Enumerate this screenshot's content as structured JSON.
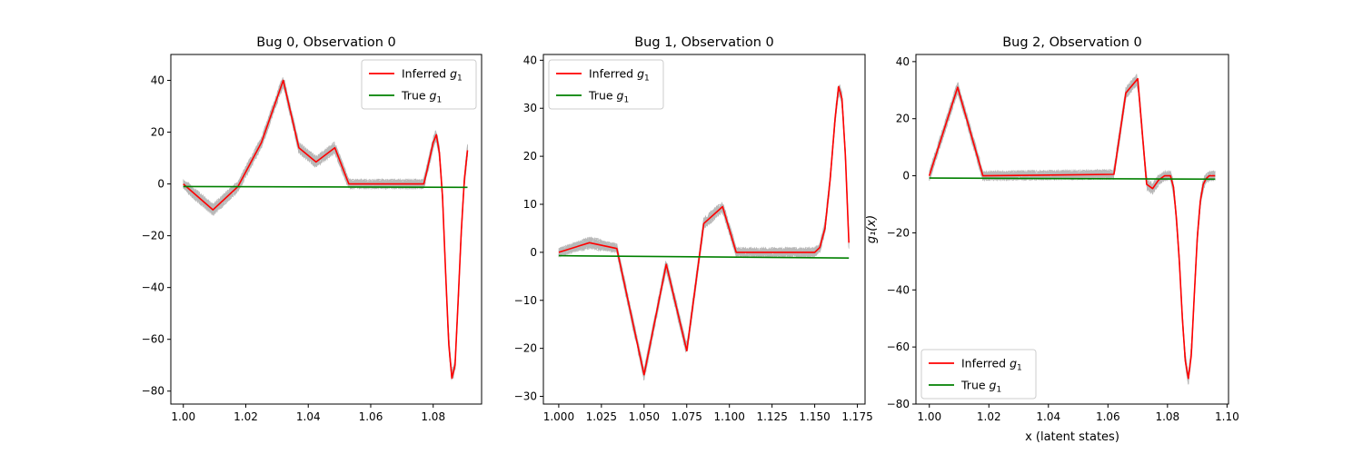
{
  "figure_label": "Inferred vs true g1 per bug",
  "colors": {
    "inferred": "#ff0000",
    "true": "#008000",
    "samples": "#b8b8b8"
  },
  "chart_data": [
    {
      "type": "line",
      "title": "Bug 0, Observation 0",
      "xlabel": "",
      "ylabel": "",
      "xlim": [
        0.996,
        1.0955
      ],
      "ylim": [
        -85,
        50
      ],
      "xticks": [
        1.0,
        1.02,
        1.04,
        1.06,
        1.08
      ],
      "xtick_labels": [
        "1.00",
        "1.02",
        "1.04",
        "1.06",
        "1.08"
      ],
      "yticks": [
        -80,
        -60,
        -40,
        -20,
        0,
        20,
        40
      ],
      "ytick_labels": [
        "−80",
        "−60",
        "−40",
        "−20",
        "0",
        "20",
        "40"
      ],
      "legend": {
        "location": "upper right",
        "entries": [
          {
            "label": "Inferred",
            "sub": "1",
            "series": "inferred"
          },
          {
            "label": "True",
            "sub": "1",
            "series": "true"
          }
        ]
      },
      "series": [
        {
          "name": "Inferred g1",
          "key": "inferred",
          "x": [
            1.0,
            1.0095,
            1.0175,
            1.025,
            1.032,
            1.037,
            1.0425,
            1.0485,
            1.053,
            1.077,
            1.078,
            1.08,
            1.081,
            1.082,
            1.083,
            1.084,
            1.085,
            1.086,
            1.087,
            1.088,
            1.089,
            1.09,
            1.091
          ],
          "y": [
            0,
            -10,
            -1,
            16,
            40,
            14,
            8.5,
            14,
            0,
            0,
            5,
            16,
            19,
            12,
            -5,
            -35,
            -62,
            -75,
            -70,
            -45,
            -18,
            2,
            13
          ]
        },
        {
          "name": "True g1",
          "key": "true",
          "x": [
            1.0,
            1.091
          ],
          "y": [
            -1,
            -1.3
          ]
        }
      ]
    },
    {
      "type": "line",
      "title": "Bug 1, Observation 0",
      "xlabel": "",
      "ylabel": "",
      "xlim": [
        0.991,
        1.1795
      ],
      "ylim": [
        -31.6,
        41.2
      ],
      "xticks": [
        1.0,
        1.025,
        1.05,
        1.075,
        1.1,
        1.125,
        1.15,
        1.175
      ],
      "xtick_labels": [
        "1.000",
        "1.025",
        "1.050",
        "1.075",
        "1.100",
        "1.125",
        "1.150",
        "1.175"
      ],
      "yticks": [
        -30,
        -20,
        -10,
        0,
        10,
        20,
        30,
        40
      ],
      "ytick_labels": [
        "−30",
        "−20",
        "−10",
        "0",
        "10",
        "20",
        "30",
        "40"
      ],
      "legend": {
        "location": "upper left",
        "entries": [
          {
            "label": "Inferred",
            "sub": "1",
            "series": "inferred"
          },
          {
            "label": "True",
            "sub": "1",
            "series": "true"
          }
        ]
      },
      "series": [
        {
          "name": "Inferred g1",
          "key": "inferred",
          "x": [
            1.0,
            1.018,
            1.034,
            1.05,
            1.063,
            1.075,
            1.085,
            1.096,
            1.104,
            1.15,
            1.153,
            1.156,
            1.159,
            1.162,
            1.164,
            1.166,
            1.168,
            1.17
          ],
          "y": [
            0,
            2,
            0.8,
            -25.5,
            -2.5,
            -20.5,
            6,
            9.5,
            0,
            0,
            1,
            5,
            15,
            28,
            34.5,
            32,
            20,
            2
          ]
        },
        {
          "name": "True g1",
          "key": "true",
          "x": [
            1.0,
            1.17
          ],
          "y": [
            -0.7,
            -1.2
          ]
        }
      ]
    },
    {
      "type": "line",
      "title": "Bug 2, Observation 0",
      "xlabel": "x (latent states)",
      "ylabel": "g₁(x)",
      "xlim": [
        0.9955,
        1.1005
      ],
      "ylim": [
        -80,
        42.5
      ],
      "xticks": [
        1.0,
        1.02,
        1.04,
        1.06,
        1.08,
        1.1
      ],
      "xtick_labels": [
        "1.00",
        "1.02",
        "1.04",
        "1.06",
        "1.08",
        "1.10"
      ],
      "yticks": [
        -80,
        -60,
        -40,
        -20,
        0,
        20,
        40
      ],
      "ytick_labels": [
        "−80",
        "−60",
        "−40",
        "−20",
        "0",
        "20",
        "40"
      ],
      "legend": {
        "location": "lower left",
        "entries": [
          {
            "label": "Inferred",
            "sub": "1",
            "series": "inferred"
          },
          {
            "label": "True",
            "sub": "1",
            "series": "true"
          }
        ]
      },
      "series": [
        {
          "name": "Inferred g1",
          "key": "inferred",
          "x": [
            1.0,
            1.0095,
            1.018,
            1.062,
            1.066,
            1.07,
            1.073,
            1.075,
            1.077,
            1.079,
            1.081,
            1.082,
            1.083,
            1.084,
            1.085,
            1.086,
            1.087,
            1.088,
            1.089,
            1.09,
            1.091,
            1.092,
            1.093,
            1.094,
            1.095,
            1.096
          ],
          "y": [
            0,
            31,
            0,
            0.5,
            29,
            34,
            -3,
            -4.5,
            -1.5,
            0,
            0,
            -4,
            -15,
            -30,
            -50,
            -65,
            -71,
            -63,
            -42,
            -22,
            -9,
            -3,
            -1,
            0,
            0,
            0
          ]
        },
        {
          "name": "True g1",
          "key": "true",
          "x": [
            1.0,
            1.096
          ],
          "y": [
            -0.8,
            -1.2
          ]
        }
      ]
    }
  ]
}
